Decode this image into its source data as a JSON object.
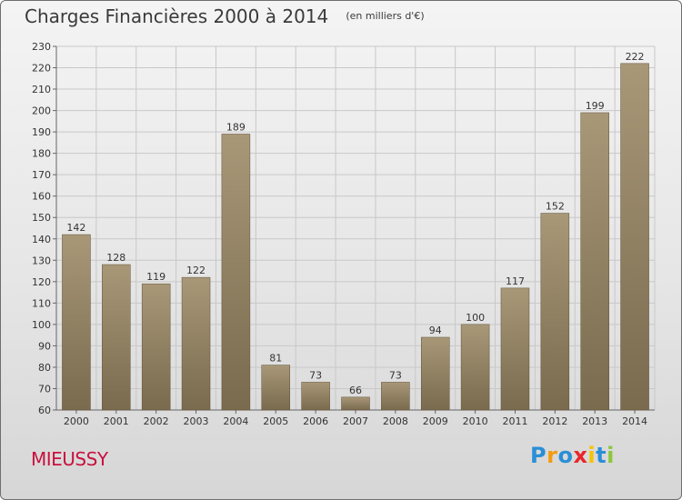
{
  "header": {
    "title": "Charges Financières 2000 à 2014",
    "subtitle": "(en milliers d'€)"
  },
  "commune": "MIEUSSY",
  "logo": {
    "text": "Proxiti",
    "letter_colors": [
      "#2a8fd6",
      "#f39c12",
      "#2a8fd6",
      "#e8262b",
      "#f5c400",
      "#2a8fd6",
      "#8cc63f"
    ]
  },
  "colors": {
    "bar_light": "#a89878",
    "bar_dark": "#7a6a4e",
    "background_top": "#f4f4f4",
    "background_bottom": "#d6d6d6",
    "commune": "#c8103e"
  },
  "chart_data": {
    "type": "bar",
    "categories": [
      "2000",
      "2001",
      "2002",
      "2003",
      "2004",
      "2005",
      "2006",
      "2007",
      "2008",
      "2009",
      "2010",
      "2011",
      "2012",
      "2013",
      "2014"
    ],
    "values": [
      142,
      128,
      119,
      122,
      189,
      81,
      73,
      66,
      73,
      94,
      100,
      117,
      152,
      199,
      222
    ],
    "ylim": [
      60,
      230
    ],
    "yticks": [
      60,
      70,
      80,
      90,
      100,
      110,
      120,
      130,
      140,
      150,
      160,
      170,
      180,
      190,
      200,
      210,
      220,
      230
    ],
    "grid": true,
    "data_labels": true
  }
}
